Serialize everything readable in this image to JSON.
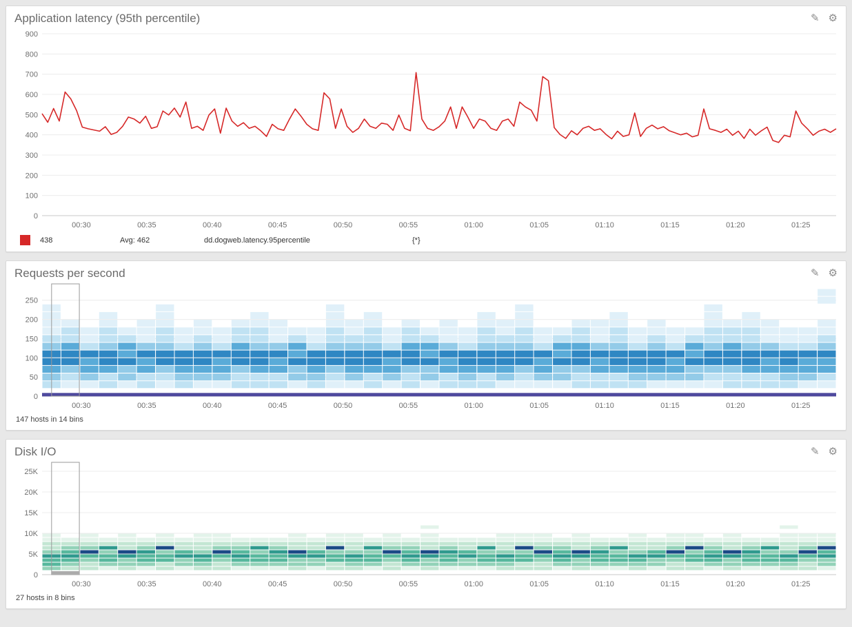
{
  "icons": {
    "edit": "✎",
    "settings": "⚙"
  },
  "panels": {
    "latency": {
      "title": "Application latency (95th percentile)",
      "legend": {
        "value": "438",
        "avg": "Avg: 462",
        "metric": "dd.dogweb.latency.95percentile",
        "scope": "{*}",
        "swatch_color": "#d62828"
      }
    },
    "requests": {
      "title": "Requests per second",
      "caption": "147 hosts in 14 bins"
    },
    "disk": {
      "title": "Disk I/O",
      "caption": "27 hosts in 8 bins"
    }
  },
  "chart_data": [
    {
      "id": "latency",
      "type": "line",
      "title": "Application latency (95th percentile)",
      "xlabel": "",
      "ylabel": "",
      "ylim": [
        0,
        900
      ],
      "yticks": [
        0,
        100,
        200,
        300,
        400,
        500,
        600,
        700,
        800,
        900
      ],
      "x_range_minutes": [
        27,
        87.7
      ],
      "xticks": [
        {
          "label": "00:30",
          "minute": 30
        },
        {
          "label": "00:35",
          "minute": 35
        },
        {
          "label": "00:40",
          "minute": 40
        },
        {
          "label": "00:45",
          "minute": 45
        },
        {
          "label": "00:50",
          "minute": 50
        },
        {
          "label": "00:55",
          "minute": 55
        },
        {
          "label": "01:00",
          "minute": 60
        },
        {
          "label": "01:05",
          "minute": 65
        },
        {
          "label": "01:10",
          "minute": 70
        },
        {
          "label": "01:15",
          "minute": 75
        },
        {
          "label": "01:20",
          "minute": 80
        },
        {
          "label": "01:25",
          "minute": 85
        }
      ],
      "line_color": "#d62828",
      "current_value": 438,
      "average": 462,
      "metric": "dd.dogweb.latency.95percentile",
      "scope": "{*}",
      "values": [
        505,
        462,
        530,
        468,
        612,
        578,
        520,
        438,
        430,
        424,
        418,
        440,
        402,
        412,
        442,
        488,
        478,
        458,
        492,
        432,
        440,
        518,
        498,
        532,
        488,
        562,
        432,
        442,
        422,
        498,
        528,
        408,
        532,
        468,
        442,
        460,
        432,
        442,
        420,
        392,
        452,
        430,
        422,
        478,
        528,
        492,
        452,
        430,
        422,
        608,
        578,
        432,
        528,
        442,
        412,
        432,
        478,
        442,
        432,
        458,
        452,
        422,
        498,
        432,
        420,
        708,
        478,
        432,
        422,
        440,
        468,
        538,
        432,
        538,
        488,
        432,
        478,
        468,
        432,
        422,
        468,
        478,
        442,
        562,
        538,
        522,
        468,
        688,
        668,
        436,
        402,
        382,
        420,
        400,
        432,
        442,
        422,
        430,
        402,
        380,
        418,
        392,
        400,
        508,
        392,
        432,
        448,
        430,
        440,
        420,
        410,
        400,
        408,
        390,
        398,
        528,
        430,
        422,
        412,
        428,
        398,
        418,
        382,
        428,
        398,
        420,
        438,
        372,
        362,
        398,
        390,
        518,
        458,
        430,
        398,
        418,
        428,
        412,
        430
      ]
    },
    {
      "id": "requests",
      "type": "heatmap",
      "title": "Requests per second",
      "caption": "147 hosts in 14 bins",
      "ylim": [
        0,
        280
      ],
      "yticks": [
        {
          "label": "0",
          "value": 0
        },
        {
          "label": "50",
          "value": 50
        },
        {
          "label": "100",
          "value": 100
        },
        {
          "label": "150",
          "value": 150
        },
        {
          "label": "200",
          "value": 200
        },
        {
          "label": "250",
          "value": 250
        }
      ],
      "x_range_minutes": [
        27,
        87.7
      ],
      "xticks": [
        {
          "label": "00:30",
          "minute": 30
        },
        {
          "label": "00:35",
          "minute": 35
        },
        {
          "label": "00:40",
          "minute": 40
        },
        {
          "label": "00:45",
          "minute": 45
        },
        {
          "label": "00:50",
          "minute": 50
        },
        {
          "label": "00:55",
          "minute": 55
        },
        {
          "label": "01:00",
          "minute": 60
        },
        {
          "label": "01:05",
          "minute": 65
        },
        {
          "label": "01:10",
          "minute": 70
        },
        {
          "label": "01:15",
          "minute": 75
        },
        {
          "label": "01:20",
          "minute": 80
        },
        {
          "label": "01:25",
          "minute": 85
        }
      ],
      "bin_size": 20,
      "palette": [
        "",
        "#e0f0f9",
        "#c0e2f3",
        "#93cbe8",
        "#5aabd8",
        "#2f87c3"
      ],
      "baseline": {
        "value": 4,
        "px": 5,
        "color": "#4f4a9e"
      },
      "selection": {
        "x0": 0.012,
        "x1": 0.047,
        "handle": false
      },
      "columns": [
        "02345532111100",
        "01235542210000",
        "01344521100000",
        "02245532211000",
        "01335442100000",
        "02244531110000",
        "01235532211100",
        "02345521100000",
        "01345532110000",
        "01344521100000",
        "02235542210000",
        "02245532211000",
        "02244531110000",
        "01335442100000",
        "02345521100000",
        "01235532211100",
        "01345532110000",
        "02245532211000",
        "01344521100000",
        "02235542210000",
        "01335442100000",
        "02244531110000",
        "02345521100000",
        "02245532211000",
        "01345532110000",
        "01235532211100",
        "01344521100000",
        "01335442100000",
        "02235542210000",
        "02244531110000",
        "02245532211000",
        "02345521100000",
        "01345532110000",
        "01344521100000",
        "01335442100000",
        "01235532211100",
        "02235542210000",
        "02245532211000",
        "02244531110000",
        "02345521100000",
        "01344521100000",
        "01244532110011"
      ]
    },
    {
      "id": "disk",
      "type": "heatmap",
      "title": "Disk I/O",
      "caption": "27 hosts in 8 bins",
      "ylim": [
        0,
        26000
      ],
      "yticks": [
        {
          "label": "0",
          "value": 0
        },
        {
          "label": "5K",
          "value": 5000
        },
        {
          "label": "10K",
          "value": 10000
        },
        {
          "label": "15K",
          "value": 15000
        },
        {
          "label": "20K",
          "value": 20000
        },
        {
          "label": "25K",
          "value": 25000
        }
      ],
      "x_range_minutes": [
        27,
        87.7
      ],
      "xticks": [
        {
          "label": "00:30",
          "minute": 30
        },
        {
          "label": "00:35",
          "minute": 35
        },
        {
          "label": "00:40",
          "minute": 40
        },
        {
          "label": "00:45",
          "minute": 45
        },
        {
          "label": "00:50",
          "minute": 50
        },
        {
          "label": "00:55",
          "minute": 55
        },
        {
          "label": "01:00",
          "minute": 60
        },
        {
          "label": "01:05",
          "minute": 65
        },
        {
          "label": "01:10",
          "minute": 70
        },
        {
          "label": "01:15",
          "minute": 75
        },
        {
          "label": "01:20",
          "minute": 80
        },
        {
          "label": "01:25",
          "minute": 85
        }
      ],
      "bin_size": 1000,
      "palette": [
        "",
        "#e3f3ea",
        "#c3e6d3",
        "#92d2b8",
        "#57b89d",
        "#2f9a8e",
        "#1b4a86"
      ],
      "selection": {
        "x0": 0.012,
        "x1": 0.047,
        "handle": true
      },
      "columns": [
        "034453221100",
        "023454321000",
        "022346321100",
        "013443521000",
        "023356221100",
        "013445321000",
        "022443621100",
        "013354221000",
        "023453221100",
        "022346321100",
        "013454321000",
        "013443521000",
        "013445321000",
        "023356221100",
        "013354221000",
        "022443621100",
        "023453221100",
        "013443521000",
        "022346321100",
        "013454321000",
        "023356221101",
        "013445321000",
        "013354221000",
        "013443521000",
        "023453221100",
        "022443621100",
        "022346321100",
        "013454321000",
        "023356221100",
        "013445321000",
        "013443521000",
        "023453221100",
        "013354221000",
        "022346321100",
        "022443621100",
        "013454321000",
        "023356221100",
        "013445321000",
        "013443521000",
        "023453221101",
        "022346321100",
        "013354621100"
      ]
    }
  ]
}
